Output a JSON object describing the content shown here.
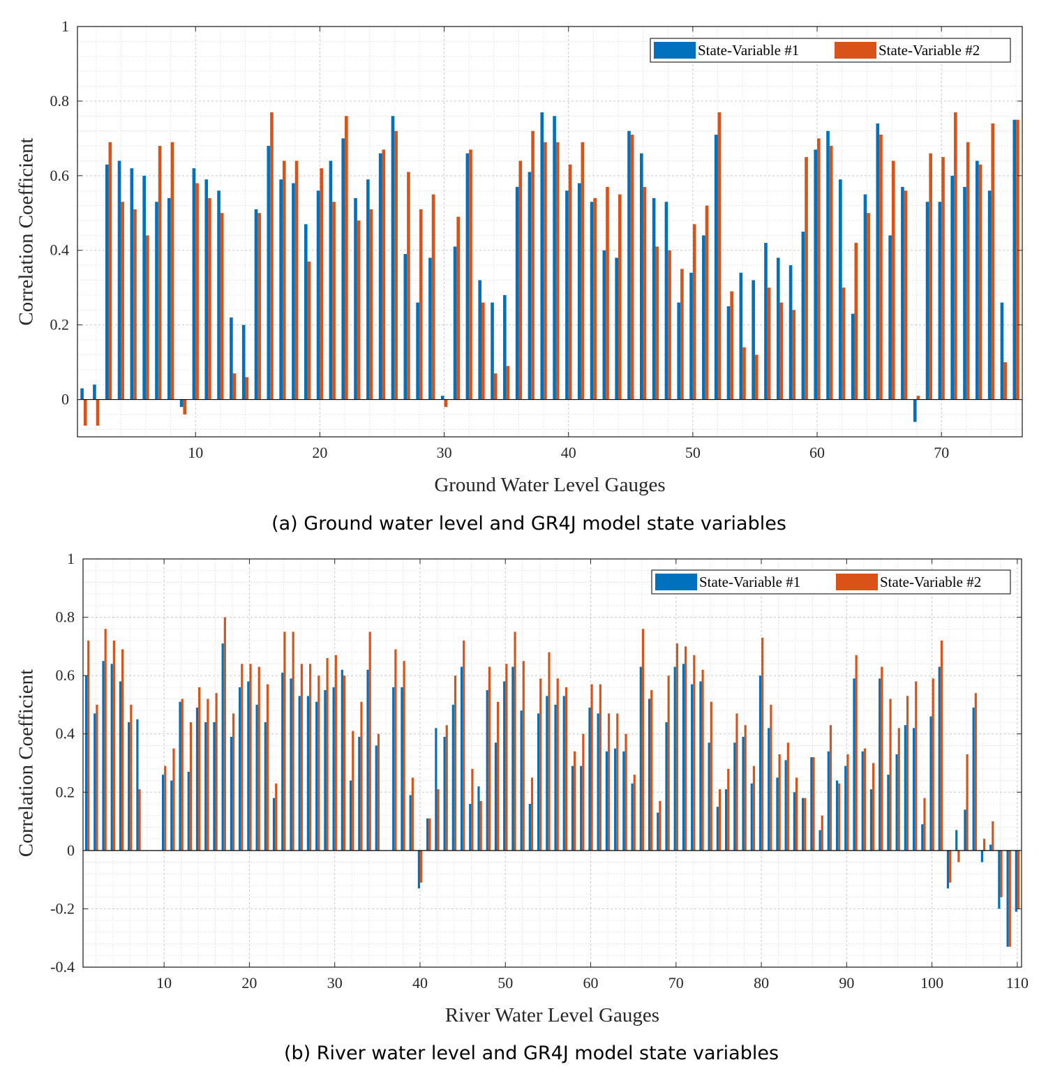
{
  "chart_data": [
    {
      "type": "bar",
      "caption": "(a) Ground water level and GR4J model state variables",
      "xlabel": "Ground Water Level Gauges",
      "ylabel": "Correlation Coefficient",
      "xlim": [
        0.5,
        76.5
      ],
      "ylim": [
        -0.1,
        1
      ],
      "yticks": [
        0,
        0.2,
        0.4,
        0.6,
        0.8,
        1
      ],
      "ytick_labels": [
        "0",
        "0.2",
        "0.4",
        "0.6",
        "0.8",
        "1"
      ],
      "xticks": [
        10,
        20,
        30,
        40,
        50,
        60,
        70
      ],
      "xtick_labels": [
        "10",
        "20",
        "30",
        "40",
        "50",
        "60",
        "70"
      ],
      "grid": true,
      "minor_grid": true,
      "legend_position": "top-right",
      "x": [
        1,
        2,
        3,
        4,
        5,
        6,
        7,
        8,
        9,
        10,
        11,
        12,
        13,
        14,
        15,
        16,
        17,
        18,
        19,
        20,
        21,
        22,
        23,
        24,
        25,
        26,
        27,
        28,
        29,
        30,
        31,
        32,
        33,
        34,
        35,
        36,
        37,
        38,
        39,
        40,
        41,
        42,
        43,
        44,
        45,
        46,
        47,
        48,
        49,
        50,
        51,
        52,
        53,
        54,
        55,
        56,
        57,
        58,
        59,
        60,
        61,
        62,
        63,
        64,
        65,
        66,
        67,
        68,
        69,
        70,
        71,
        72,
        73,
        74,
        75,
        76
      ],
      "series": [
        {
          "name": "State-Variable #1",
          "color": "#0072BD",
          "values": [
            0.03,
            0.04,
            0.63,
            0.64,
            0.62,
            0.6,
            0.53,
            0.54,
            -0.02,
            0.62,
            0.59,
            0.56,
            0.22,
            0.2,
            0.51,
            0.68,
            0.59,
            0.58,
            0.47,
            0.56,
            0.64,
            0.7,
            0.54,
            0.59,
            0.66,
            0.76,
            0.39,
            0.26,
            0.38,
            0.01,
            0.41,
            0.66,
            0.32,
            0.26,
            0.28,
            0.57,
            0.61,
            0.77,
            0.76,
            0.56,
            0.58,
            0.53,
            0.4,
            0.38,
            0.72,
            0.66,
            0.54,
            0.53,
            0.26,
            0.34,
            0.44,
            0.71,
            0.25,
            0.34,
            0.32,
            0.42,
            0.38,
            0.36,
            0.45,
            0.67,
            0.72,
            0.59,
            0.23,
            0.55,
            0.74,
            0.44,
            0.57,
            -0.06,
            0.53,
            0.53,
            0.6,
            0.57,
            0.64,
            0.56,
            0.26,
            0.75
          ]
        },
        {
          "name": "State-Variable #2",
          "color": "#D95319",
          "values": [
            -0.07,
            -0.07,
            0.69,
            0.53,
            0.51,
            0.44,
            0.68,
            0.69,
            -0.04,
            0.58,
            0.54,
            0.5,
            0.07,
            0.06,
            0.5,
            0.77,
            0.64,
            0.64,
            0.37,
            0.62,
            0.53,
            0.76,
            0.48,
            0.51,
            0.67,
            0.72,
            0.61,
            0.51,
            0.55,
            -0.02,
            0.49,
            0.67,
            0.26,
            0.07,
            0.09,
            0.64,
            0.72,
            0.69,
            0.69,
            0.63,
            0.69,
            0.54,
            0.57,
            0.55,
            0.71,
            0.57,
            0.41,
            0.4,
            0.35,
            0.47,
            0.52,
            0.77,
            0.29,
            0.14,
            0.12,
            0.3,
            0.26,
            0.24,
            0.65,
            0.7,
            0.68,
            0.3,
            0.42,
            0.5,
            0.71,
            0.64,
            0.56,
            0.01,
            0.66,
            0.65,
            0.77,
            0.69,
            0.63,
            0.74,
            0.1,
            0.75
          ]
        }
      ]
    },
    {
      "type": "bar",
      "caption": "(b) River water level and GR4J model state variables",
      "xlabel": "River Water Level Gauges",
      "ylabel": "Correlation Coefficient",
      "xlim": [
        0.5,
        110.5
      ],
      "ylim": [
        -0.4,
        1
      ],
      "yticks": [
        -0.4,
        -0.2,
        0,
        0.2,
        0.4,
        0.6,
        0.8,
        1
      ],
      "ytick_labels": [
        "-0.4",
        "-0.2",
        "0",
        "0.2",
        "0.4",
        "0.6",
        "0.8",
        "1"
      ],
      "xticks": [
        10,
        20,
        30,
        40,
        50,
        60,
        70,
        80,
        90,
        100,
        110
      ],
      "xtick_labels": [
        "10",
        "20",
        "30",
        "40",
        "50",
        "60",
        "70",
        "80",
        "90",
        "100",
        "110"
      ],
      "grid": true,
      "minor_grid": true,
      "legend_position": "top-right",
      "x": [
        1,
        2,
        3,
        4,
        5,
        6,
        7,
        8,
        9,
        10,
        11,
        12,
        13,
        14,
        15,
        16,
        17,
        18,
        19,
        20,
        21,
        22,
        23,
        24,
        25,
        26,
        27,
        28,
        29,
        30,
        31,
        32,
        33,
        34,
        35,
        36,
        37,
        38,
        39,
        40,
        41,
        42,
        43,
        44,
        45,
        46,
        47,
        48,
        49,
        50,
        51,
        52,
        53,
        54,
        55,
        56,
        57,
        58,
        59,
        60,
        61,
        62,
        63,
        64,
        65,
        66,
        67,
        68,
        69,
        70,
        71,
        72,
        73,
        74,
        75,
        76,
        77,
        78,
        79,
        80,
        81,
        82,
        83,
        84,
        85,
        86,
        87,
        88,
        89,
        90,
        91,
        92,
        93,
        94,
        95,
        96,
        97,
        98,
        99,
        100,
        101,
        102,
        103,
        104,
        105,
        106,
        107,
        108,
        109,
        110
      ],
      "series": [
        {
          "name": "State-Variable #1",
          "color": "#0072BD",
          "values": [
            0.6,
            0.47,
            0.65,
            0.64,
            0.58,
            0.44,
            0.45,
            0,
            0,
            0.26,
            0.24,
            0.51,
            0.27,
            0.49,
            0.44,
            0.44,
            0.71,
            0.39,
            0.56,
            0.58,
            0.5,
            0.44,
            0.18,
            0.61,
            0.59,
            0.53,
            0.53,
            0.51,
            0.55,
            0.56,
            0.62,
            0.24,
            0.39,
            0.62,
            0.36,
            0,
            0.56,
            0.56,
            0.19,
            -0.13,
            0.11,
            0.42,
            0.39,
            0.5,
            0.63,
            0.16,
            0.22,
            0.55,
            0.37,
            0.58,
            0.63,
            0.48,
            0.16,
            0.47,
            0.53,
            0.5,
            0.53,
            0.29,
            0.29,
            0.49,
            0.47,
            0.34,
            0.35,
            0.34,
            0.23,
            0.63,
            0.52,
            0.13,
            0.44,
            0.63,
            0.64,
            0.57,
            0.58,
            0.37,
            0.15,
            0.21,
            0.37,
            0.39,
            0.23,
            0.6,
            0.42,
            0.25,
            0.31,
            0.2,
            0.18,
            0.32,
            0.07,
            0.34,
            0.24,
            0.29,
            0.59,
            0.34,
            0.21,
            0.59,
            0.26,
            0.33,
            0.43,
            0.42,
            0.09,
            0.46,
            0.63,
            -0.13,
            0.07,
            0.14,
            0.49,
            -0.04,
            0.02,
            -0.2,
            -0.33,
            -0.21
          ]
        },
        {
          "name": "State-Variable #2",
          "color": "#D95319",
          "values": [
            0.72,
            0.5,
            0.76,
            0.72,
            0.69,
            0.5,
            0.21,
            0,
            0,
            0.29,
            0.35,
            0.52,
            0.44,
            0.56,
            0.52,
            0.54,
            0.8,
            0.47,
            0.64,
            0.64,
            0.63,
            0.57,
            0.23,
            0.75,
            0.75,
            0.64,
            0.64,
            0.6,
            0.66,
            0.67,
            0.6,
            0.41,
            0.51,
            0.75,
            0.4,
            0,
            0.69,
            0.65,
            0.25,
            -0.11,
            0.11,
            0.21,
            0.43,
            0.6,
            0.72,
            0.28,
            0.17,
            0.63,
            0.51,
            0.64,
            0.75,
            0.65,
            0.25,
            0.59,
            0.68,
            0.59,
            0.56,
            0.34,
            0.4,
            0.57,
            0.57,
            0.47,
            0.47,
            0.4,
            0.26,
            0.76,
            0.55,
            0.17,
            0.6,
            0.71,
            0.7,
            0.67,
            0.62,
            0.51,
            0.21,
            0.28,
            0.47,
            0.43,
            0.29,
            0.73,
            0.5,
            0.33,
            0.37,
            0.25,
            0.18,
            0.32,
            0.12,
            0.43,
            0.23,
            0.33,
            0.67,
            0.35,
            0.3,
            0.63,
            0.52,
            0.42,
            0.53,
            0.58,
            0.18,
            0.59,
            0.72,
            -0.11,
            -0.04,
            0.33,
            0.54,
            0.04,
            0.1,
            -0.16,
            -0.33,
            -0.2
          ]
        }
      ]
    }
  ]
}
